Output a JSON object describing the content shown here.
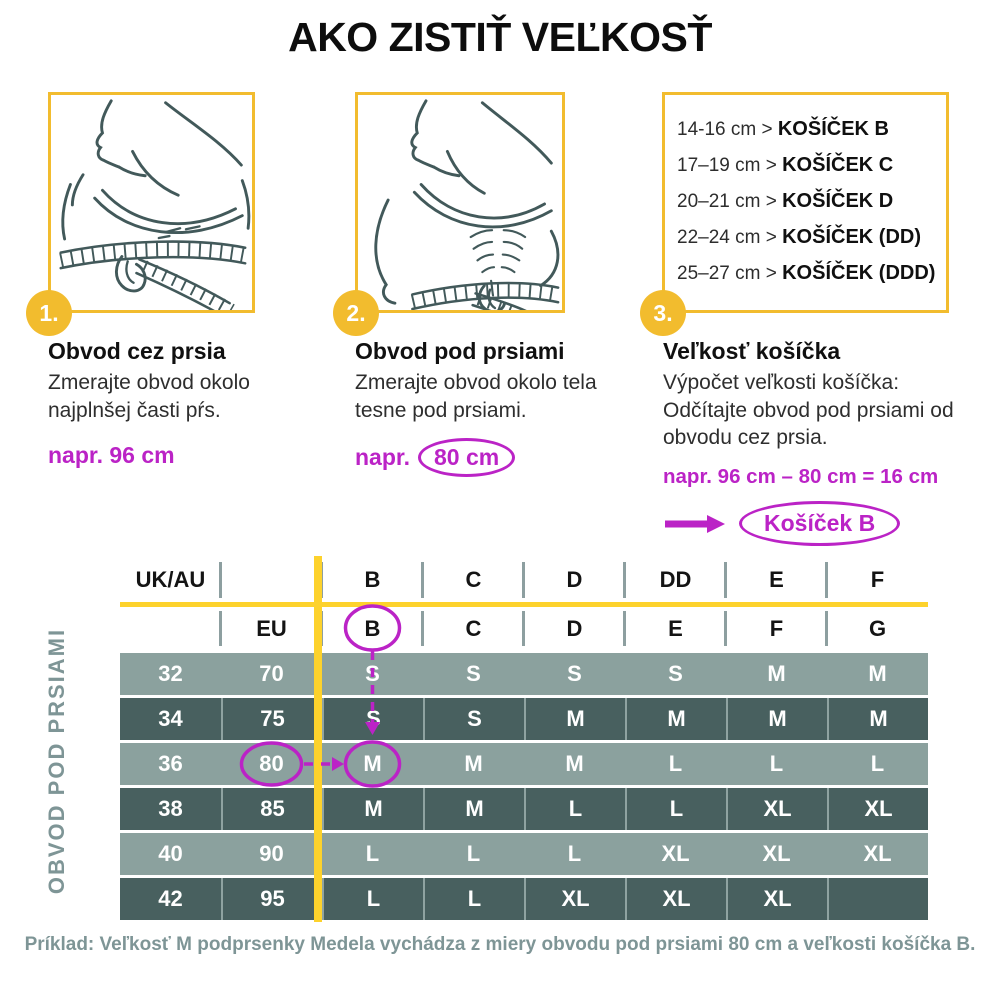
{
  "title": "AKO ZISTIŤ VEĽKOSŤ",
  "steps": [
    {
      "number": "1.",
      "heading": "Obvod cez prsia",
      "description": "Zmerajte obvod okolo najplnšej časti pŕs.",
      "example_prefix": "napr.",
      "example_value": "96 cm",
      "illustration": "measuring-tape-over-bust"
    },
    {
      "number": "2.",
      "heading": "Obvod pod prsiami",
      "description": "Zmerajte obvod okolo tela tesne pod prsiami.",
      "example_prefix": "napr.",
      "example_value": "80 cm",
      "illustration": "measuring-tape-under-bust"
    },
    {
      "number": "3.",
      "heading": "Veľkosť košíčka",
      "description": "Výpočet veľkosti košíčka: Odčítajte obvod pod prsiami od obvodu cez prsia.",
      "example_formula": "napr. 96 cm – 80 cm = 16 cm",
      "example_result": "Košíček B"
    }
  ],
  "cup_chart": {
    "separator": ">",
    "rows": [
      {
        "range": "14-16 cm",
        "cup": "KOŠÍČEK B"
      },
      {
        "range": "17–19 cm",
        "cup": "KOŠÍČEK C"
      },
      {
        "range": "20–21 cm",
        "cup": "KOŠÍČEK D"
      },
      {
        "range": "22–24 cm",
        "cup": "KOŠÍČEK (DD)"
      },
      {
        "range": "25–27 cm",
        "cup": "KOŠÍČEK (DDD)"
      }
    ]
  },
  "size_table": {
    "left_axis_label": "OBVOD POD PRSIAMI",
    "header_row_uk": [
      "UK/AU",
      "",
      "B",
      "C",
      "D",
      "DD",
      "E",
      "F"
    ],
    "header_row_eu": [
      "",
      "EU",
      "B",
      "C",
      "D",
      "E",
      "F",
      "G"
    ],
    "rows": [
      [
        "32",
        "70",
        "S",
        "S",
        "S",
        "S",
        "M",
        "M"
      ],
      [
        "34",
        "75",
        "S",
        "S",
        "M",
        "M",
        "M",
        "M"
      ],
      [
        "36",
        "80",
        "M",
        "M",
        "M",
        "L",
        "L",
        "L"
      ],
      [
        "38",
        "85",
        "M",
        "M",
        "L",
        "L",
        "XL",
        "XL"
      ],
      [
        "40",
        "90",
        "L",
        "L",
        "L",
        "XL",
        "XL",
        "XL"
      ],
      [
        "42",
        "95",
        "L",
        "L",
        "XL",
        "XL",
        "XL",
        ""
      ]
    ],
    "highlight": {
      "circled_cup_column": "B",
      "circled_band_value": "80",
      "circled_result": "M"
    }
  },
  "footer_note": "Príklad: Veľkosť M podprsenky Medela vychádza z miery obvodu pod prsiami 80 cm a veľkosti košíčka B.",
  "colors": {
    "yellow": "#f2bc2e",
    "bright_yellow": "#fdd22c",
    "magenta": "#bb23c6",
    "dark_teal": "#42595a",
    "row_light": "#8ba19e",
    "row_dark": "#48605f",
    "axis_gray": "#7e9596"
  }
}
